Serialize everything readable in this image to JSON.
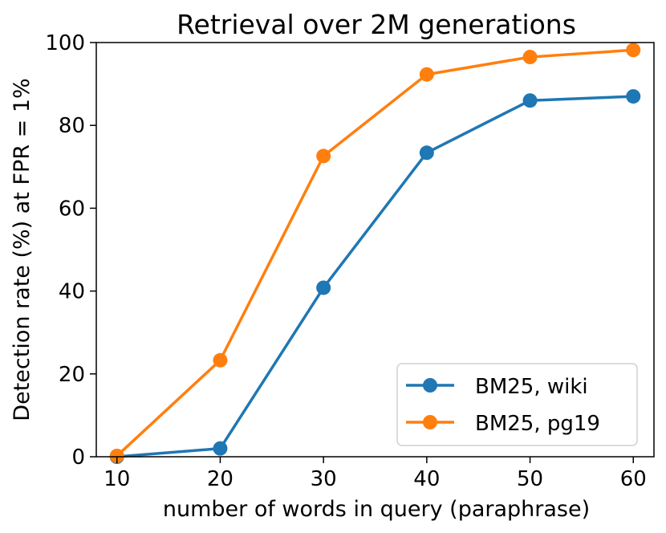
{
  "chart_data": {
    "type": "line",
    "title": "Retrieval over 2M generations",
    "xlabel": "number of words in query (paraphrase)",
    "ylabel": "Detection rate (%) at FPR = 1%",
    "x": [
      10,
      20,
      30,
      40,
      50,
      60
    ],
    "xlim": [
      8,
      62
    ],
    "ylim": [
      0,
      100
    ],
    "xticks": [
      10,
      20,
      30,
      40,
      50,
      60
    ],
    "yticks": [
      0,
      20,
      40,
      60,
      80,
      100
    ],
    "grid": false,
    "legend_position": "lower-right",
    "series": [
      {
        "name": "BM25, wiki",
        "color": "#1f77b4",
        "values": [
          0.0,
          2.0,
          40.8,
          73.4,
          86.0,
          87.0
        ]
      },
      {
        "name": "BM25, pg19",
        "color": "#ff7f0e",
        "values": [
          0.2,
          23.3,
          72.6,
          92.3,
          96.5,
          98.2
        ]
      }
    ]
  }
}
